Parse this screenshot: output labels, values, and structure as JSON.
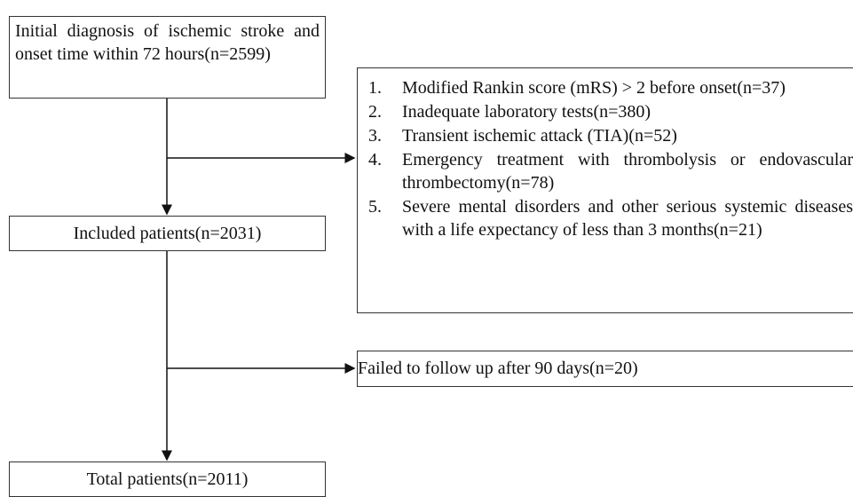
{
  "nodes": [
    {
      "label": "Initial diagnosis of ischemic stroke and onset time within 72 hours(n=2599)"
    },
    {
      "label": "Included patients(n=2031)"
    },
    {
      "label": "Total patients(n=2011)"
    }
  ],
  "exclusions": [
    {
      "items": [
        {
          "number": "1.",
          "text": "Modified Rankin score (mRS) > 2 before onset(n=37)"
        },
        {
          "number": "2.",
          "text": "Inadequate laboratory tests(n=380)"
        },
        {
          "number": "3.",
          "text": "Transient ischemic attack (TIA)(n=52)"
        },
        {
          "number": "4.",
          "text": "Emergency treatment with thrombolysis or endovascular thrombectomy(n=78)"
        },
        {
          "number": "5.",
          "text": "Severe mental disorders and other serious systemic diseases with a life expectancy of less than 3 months(n=21)"
        }
      ]
    },
    {
      "label": "Failed to follow up after 90 days(n=20)"
    }
  ]
}
